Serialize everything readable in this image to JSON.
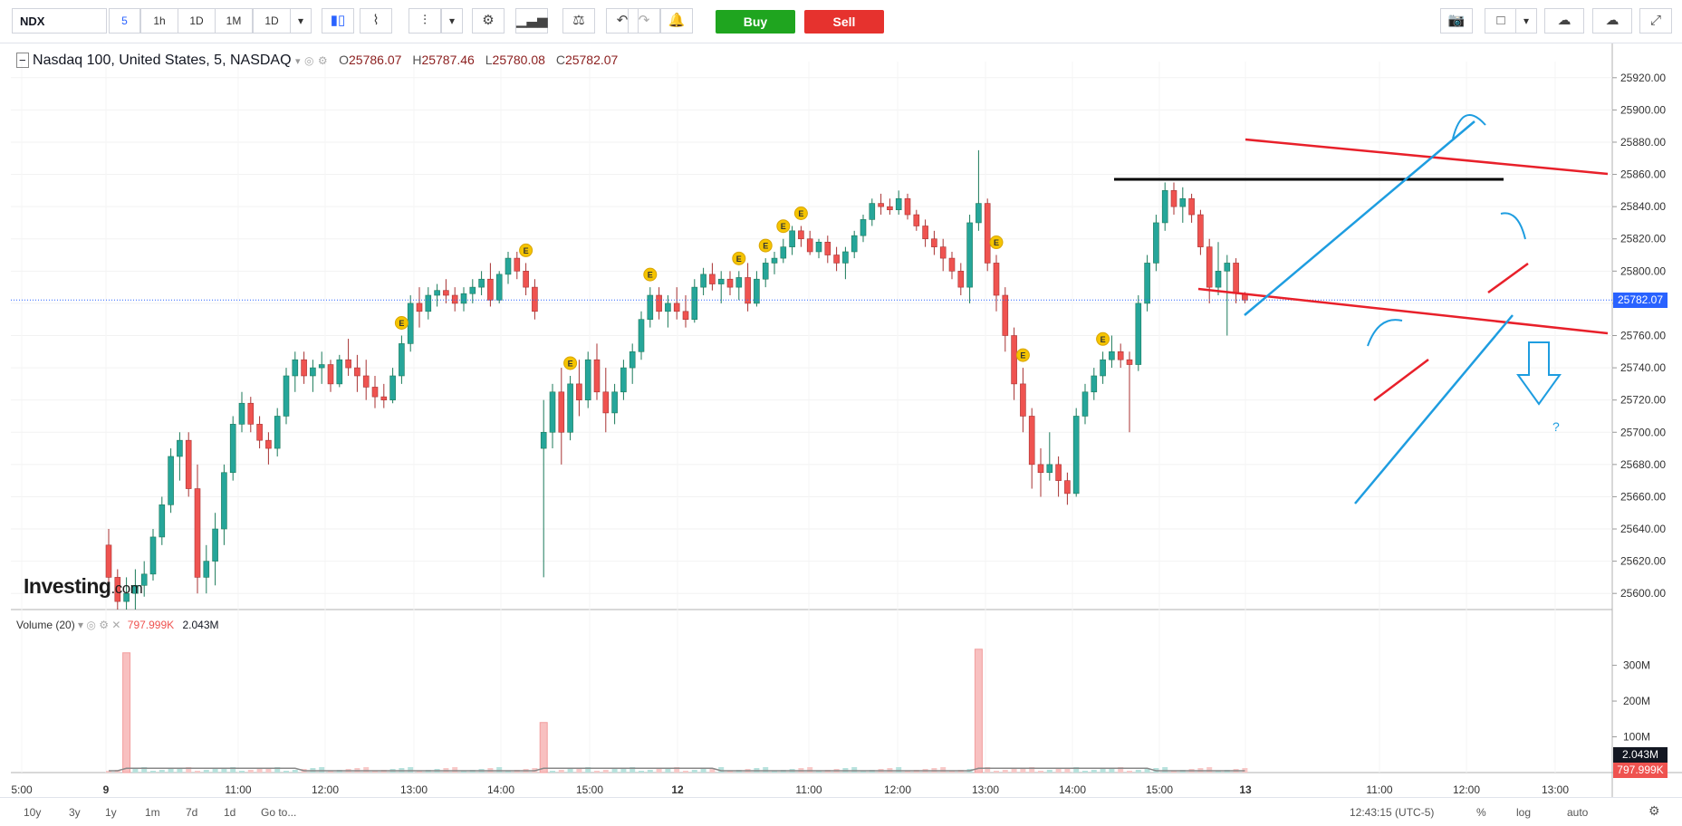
{
  "toolbar": {
    "symbol": "NDX",
    "intervals": [
      "5",
      "1h",
      "1D",
      "1M",
      "1D"
    ],
    "active_interval": "5",
    "buy_label": "Buy",
    "sell_label": "Sell"
  },
  "legend": {
    "title": "Nasdaq 100, United States, 5, NASDAQ",
    "o_label": "O",
    "o_value": "25786.07",
    "h_label": "H",
    "h_value": "25787.46",
    "l_label": "L",
    "l_value": "25780.08",
    "c_label": "C",
    "c_value": "25782.07"
  },
  "volume_legend": {
    "label": "Volume (20)",
    "value1": "797.999K",
    "value2": "2.043M"
  },
  "logo": {
    "text": "Investing",
    "suffix": ".com"
  },
  "price_axis": {
    "ticks": [
      "25920.00",
      "25900.00",
      "25880.00",
      "25860.00",
      "25840.00",
      "25820.00",
      "25800.00",
      "25780.00",
      "25760.00",
      "25740.00",
      "25720.00",
      "25700.00",
      "25680.00",
      "25660.00",
      "25640.00",
      "25620.00",
      "25600.00"
    ],
    "current_price": "25782.07"
  },
  "volume_axis": {
    "ticks": [
      "300M",
      "200M",
      "100M"
    ],
    "badge1": "2.043M",
    "badge2": "797.999K"
  },
  "time_axis": [
    "5:00",
    "9",
    "11:00",
    "12:00",
    "13:00",
    "14:00",
    "15:00",
    "12",
    "11:00",
    "12:00",
    "13:00",
    "14:00",
    "15:00",
    "13",
    "11:00",
    "12:00",
    "13:00"
  ],
  "bottom_bar": {
    "ranges": [
      "10y",
      "3y",
      "1y",
      "1m",
      "7d",
      "1d"
    ],
    "goto": "Go to...",
    "clock": "12:43:15 (UTC-5)",
    "percent": "%",
    "log": "log",
    "auto": "auto"
  },
  "annotations": {
    "question_mark": "?",
    "event_marker": "E"
  },
  "colors": {
    "up": "#26a69a",
    "down": "#ef5350",
    "drawing_red": "#e8202a",
    "drawing_blue": "#1e9de0",
    "drawing_black": "#000000",
    "buy": "#1fa51f",
    "sell": "#e6322e"
  },
  "chart_data": {
    "type": "candlestick",
    "ylim": [
      25590,
      25930
    ],
    "ohlc": [
      [
        25630,
        25640,
        25600,
        25610
      ],
      [
        25610,
        25615,
        25590,
        25595
      ],
      [
        25595,
        25610,
        25590,
        25600
      ],
      [
        25600,
        25615,
        25590,
        25605
      ],
      [
        25605,
        25620,
        25598,
        25612
      ],
      [
        25612,
        25640,
        25608,
        25635
      ],
      [
        25635,
        25660,
        25630,
        25655
      ],
      [
        25655,
        25690,
        25650,
        25685
      ],
      [
        25685,
        25700,
        25670,
        25695
      ],
      [
        25695,
        25700,
        25660,
        25665
      ],
      [
        25665,
        25680,
        25600,
        25610
      ],
      [
        25610,
        25630,
        25600,
        25620
      ],
      [
        25620,
        25650,
        25605,
        25640
      ],
      [
        25640,
        25680,
        25630,
        25675
      ],
      [
        25675,
        25710,
        25670,
        25705
      ],
      [
        25705,
        25725,
        25700,
        25718
      ],
      [
        25718,
        25722,
        25700,
        25705
      ],
      [
        25705,
        25710,
        25690,
        25695
      ],
      [
        25695,
        25700,
        25680,
        25690
      ],
      [
        25690,
        25715,
        25685,
        25710
      ],
      [
        25710,
        25740,
        25705,
        25735
      ],
      [
        25735,
        25750,
        25725,
        25745
      ],
      [
        25745,
        25750,
        25730,
        25735
      ],
      [
        25735,
        25745,
        25725,
        25740
      ],
      [
        25740,
        25750,
        25730,
        25742
      ],
      [
        25742,
        25745,
        25725,
        25730
      ],
      [
        25730,
        25748,
        25728,
        25745
      ],
      [
        25745,
        25758,
        25735,
        25740
      ],
      [
        25740,
        25748,
        25725,
        25735
      ],
      [
        25735,
        25745,
        25720,
        25728
      ],
      [
        25728,
        25735,
        25715,
        25722
      ],
      [
        25722,
        25730,
        25715,
        25720
      ],
      [
        25720,
        25740,
        25718,
        25735
      ],
      [
        25735,
        25760,
        25730,
        25755
      ],
      [
        25755,
        25785,
        25750,
        25780
      ],
      [
        25780,
        25790,
        25765,
        25775
      ],
      [
        25775,
        25790,
        25770,
        25785
      ],
      [
        25785,
        25792,
        25778,
        25788
      ],
      [
        25788,
        25795,
        25780,
        25785
      ],
      [
        25785,
        25790,
        25775,
        25780
      ],
      [
        25780,
        25790,
        25775,
        25786
      ],
      [
        25786,
        25795,
        25780,
        25790
      ],
      [
        25790,
        25800,
        25785,
        25795
      ],
      [
        25795,
        25805,
        25778,
        25782
      ],
      [
        25782,
        25800,
        25780,
        25798
      ],
      [
        25798,
        25812,
        25792,
        25808
      ],
      [
        25808,
        25812,
        25795,
        25800
      ],
      [
        25800,
        25805,
        25785,
        25790
      ],
      [
        25790,
        25795,
        25770,
        25775
      ],
      [
        25690,
        25720,
        25610,
        25700
      ],
      [
        25700,
        25730,
        25690,
        25725
      ],
      [
        25725,
        25740,
        25680,
        25700
      ],
      [
        25700,
        25735,
        25695,
        25730
      ],
      [
        25730,
        25745,
        25710,
        25720
      ],
      [
        25720,
        25750,
        25715,
        25745
      ],
      [
        25745,
        25755,
        25720,
        25725
      ],
      [
        25725,
        25740,
        25700,
        25712
      ],
      [
        25712,
        25730,
        25705,
        25725
      ],
      [
        25725,
        25745,
        25720,
        25740
      ],
      [
        25740,
        25755,
        25730,
        25750
      ],
      [
        25750,
        25775,
        25745,
        25770
      ],
      [
        25770,
        25790,
        25765,
        25785
      ],
      [
        25785,
        25790,
        25770,
        25775
      ],
      [
        25775,
        25785,
        25765,
        25780
      ],
      [
        25780,
        25790,
        25770,
        25775
      ],
      [
        25775,
        25785,
        25765,
        25770
      ],
      [
        25770,
        25795,
        25768,
        25790
      ],
      [
        25790,
        25802,
        25785,
        25798
      ],
      [
        25798,
        25805,
        25788,
        25792
      ],
      [
        25792,
        25800,
        25780,
        25795
      ],
      [
        25795,
        25800,
        25785,
        25790
      ],
      [
        25790,
        25800,
        25782,
        25796
      ],
      [
        25796,
        25805,
        25775,
        25780
      ],
      [
        25780,
        25800,
        25778,
        25795
      ],
      [
        25795,
        25808,
        25790,
        25805
      ],
      [
        25805,
        25812,
        25798,
        25808
      ],
      [
        25808,
        25820,
        25805,
        25815
      ],
      [
        25815,
        25828,
        25810,
        25825
      ],
      [
        25825,
        25828,
        25815,
        25820
      ],
      [
        25820,
        25825,
        25810,
        25812
      ],
      [
        25812,
        25820,
        25808,
        25818
      ],
      [
        25818,
        25822,
        25805,
        25810
      ],
      [
        25810,
        25815,
        25800,
        25805
      ],
      [
        25805,
        25815,
        25795,
        25812
      ],
      [
        25812,
        25825,
        25808,
        25822
      ],
      [
        25822,
        25835,
        25818,
        25832
      ],
      [
        25832,
        25845,
        25828,
        25842
      ],
      [
        25842,
        25848,
        25835,
        25840
      ],
      [
        25840,
        25845,
        25835,
        25838
      ],
      [
        25838,
        25850,
        25835,
        25845
      ],
      [
        25845,
        25848,
        25832,
        25835
      ],
      [
        25835,
        25838,
        25825,
        25828
      ],
      [
        25828,
        25832,
        25815,
        25820
      ],
      [
        25820,
        25825,
        25810,
        25815
      ],
      [
        25815,
        25820,
        25800,
        25808
      ],
      [
        25808,
        25812,
        25795,
        25800
      ],
      [
        25800,
        25805,
        25785,
        25790
      ],
      [
        25790,
        25835,
        25780,
        25830
      ],
      [
        25830,
        25875,
        25825,
        25842
      ],
      [
        25842,
        25845,
        25800,
        25805
      ],
      [
        25805,
        25810,
        25775,
        25785
      ],
      [
        25785,
        25790,
        25750,
        25760
      ],
      [
        25760,
        25765,
        25720,
        25730
      ],
      [
        25730,
        25740,
        25700,
        25710
      ],
      [
        25710,
        25715,
        25665,
        25680
      ],
      [
        25680,
        25690,
        25660,
        25675
      ],
      [
        25675,
        25700,
        25670,
        25680
      ],
      [
        25680,
        25685,
        25660,
        25670
      ],
      [
        25670,
        25675,
        25655,
        25662
      ],
      [
        25662,
        25715,
        25660,
        25710
      ],
      [
        25710,
        25730,
        25705,
        25725
      ],
      [
        25725,
        25740,
        25720,
        25735
      ],
      [
        25735,
        25750,
        25730,
        25745
      ],
      [
        25745,
        25760,
        25740,
        25750
      ],
      [
        25750,
        25755,
        25740,
        25745
      ],
      [
        25745,
        25750,
        25700,
        25742
      ],
      [
        25742,
        25785,
        25738,
        25780
      ],
      [
        25780,
        25810,
        25775,
        25805
      ],
      [
        25805,
        25835,
        25800,
        25830
      ],
      [
        25830,
        25855,
        25825,
        25850
      ],
      [
        25850,
        25855,
        25835,
        25840
      ],
      [
        25840,
        25852,
        25830,
        25845
      ],
      [
        25845,
        25848,
        25830,
        25835
      ],
      [
        25835,
        25838,
        25810,
        25815
      ],
      [
        25815,
        25820,
        25780,
        25790
      ],
      [
        25790,
        25818,
        25785,
        25800
      ],
      [
        25800,
        25810,
        25760,
        25805
      ],
      [
        25805,
        25808,
        25780,
        25786
      ],
      [
        25786,
        25787,
        25780,
        25782
      ]
    ],
    "volume_spikes": [
      {
        "candle_index": 2,
        "value": "335M"
      },
      {
        "candle_index": 49,
        "value": "140M"
      },
      {
        "candle_index": 98,
        "value": "345M"
      }
    ],
    "event_markers_candle_index": [
      33,
      47,
      52,
      61,
      71,
      74,
      76,
      78,
      100,
      103,
      112
    ]
  }
}
